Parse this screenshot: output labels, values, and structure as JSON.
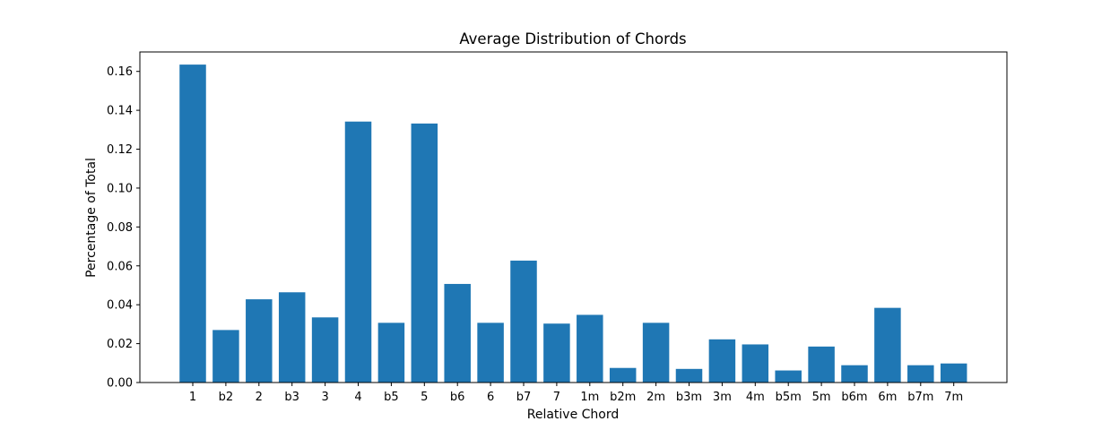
{
  "chart_data": {
    "type": "bar",
    "title": "Average Distribution of Chords",
    "xlabel": "Relative Chord",
    "ylabel": "Percentage of Total",
    "categories": [
      "1",
      "b2",
      "2",
      "b3",
      "3",
      "4",
      "b5",
      "5",
      "b6",
      "6",
      "b7",
      "7",
      "1m",
      "b2m",
      "2m",
      "b3m",
      "3m",
      "4m",
      "b5m",
      "5m",
      "b6m",
      "6m",
      "b7m",
      "7m"
    ],
    "values": [
      0.1635,
      0.027,
      0.0428,
      0.0464,
      0.0335,
      0.1342,
      0.0307,
      0.1332,
      0.0507,
      0.0307,
      0.0627,
      0.0303,
      0.0348,
      0.0075,
      0.0307,
      0.007,
      0.0222,
      0.0196,
      0.0062,
      0.0185,
      0.0089,
      0.0384,
      0.0089,
      0.0098
    ],
    "ylim": [
      0,
      0.17
    ],
    "yticks": [
      "0.00",
      "0.02",
      "0.04",
      "0.06",
      "0.08",
      "0.10",
      "0.12",
      "0.14",
      "0.16"
    ],
    "bar_color": "#1f77b4",
    "grid": false,
    "legend": false
  }
}
